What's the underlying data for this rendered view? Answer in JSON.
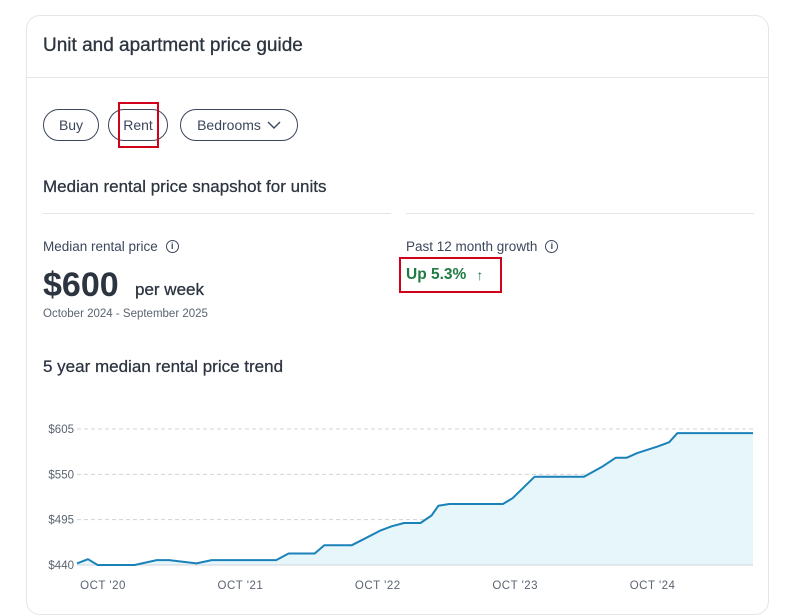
{
  "card": {
    "title": "Unit and apartment price guide"
  },
  "filters": {
    "buy_label": "Buy",
    "rent_label": "Rent",
    "bedrooms_label": "Bedrooms",
    "selected": "Rent"
  },
  "snapshot": {
    "title": "Median rental price snapshot for units",
    "median_label": "Median rental price",
    "median_value": "$600",
    "median_unit": "per week",
    "period": "October 2024 - September 2025",
    "growth_label": "Past 12 month growth",
    "growth_value": "Up 5.3%",
    "growth_arrow": "↑"
  },
  "colors": {
    "line": "#1a82b8",
    "fill": "#e7f6fb",
    "growth": "#1f7a43",
    "highlight": "#d0021b"
  },
  "chart_data": {
    "type": "area",
    "title": "5 year median rental price trend",
    "xlabel": "",
    "ylabel": "",
    "ylim": [
      440,
      605
    ],
    "y_ticks": [
      605,
      550,
      495,
      440
    ],
    "y_tick_labels": [
      "$605",
      "$550",
      "$495",
      "$440"
    ],
    "x_tick_labels": [
      "OCT '20",
      "OCT '21",
      "OCT '22",
      "OCT '23",
      "OCT '24"
    ],
    "x_range": [
      2020.75,
      2025.67
    ],
    "x_ticks": [
      2020.75,
      2021.75,
      2022.75,
      2023.75,
      2024.75
    ],
    "grid": true,
    "series": [
      {
        "name": "Median rental price",
        "x": [
          2020.75,
          2020.83,
          2020.9,
          2021.17,
          2021.33,
          2021.42,
          2021.62,
          2021.73,
          2021.83,
          2022.2,
          2022.29,
          2022.48,
          2022.55,
          2022.75,
          2022.82,
          2022.96,
          2023.04,
          2023.13,
          2023.25,
          2023.33,
          2023.38,
          2023.46,
          2023.58,
          2023.85,
          2023.92,
          2024.08,
          2024.44,
          2024.58,
          2024.67,
          2024.75,
          2024.83,
          2024.98,
          2025.06,
          2025.12,
          2025.67
        ],
        "values": [
          442,
          447,
          440,
          440,
          446,
          446,
          442,
          446,
          446,
          446,
          454,
          454,
          464,
          464,
          470,
          482,
          487,
          491,
          491,
          500,
          512,
          514,
          514,
          514,
          521,
          547,
          547,
          560,
          570,
          570,
          576,
          584,
          589,
          600,
          600
        ]
      }
    ]
  }
}
